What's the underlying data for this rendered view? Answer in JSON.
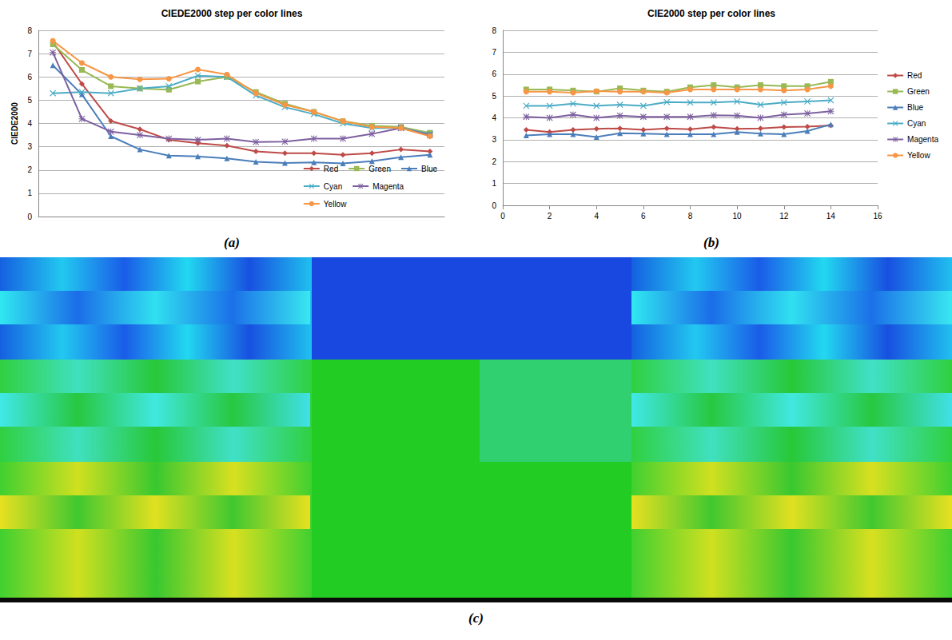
{
  "chart_data": [
    {
      "type": "line",
      "caption": "(a)",
      "title": "CIEDE2000 step per color lines",
      "y_label": "CIEDE2000",
      "categories": [
        null,
        null,
        null,
        null,
        null,
        null,
        null,
        null,
        null,
        null,
        null,
        null,
        null,
        null
      ],
      "ylim": [
        0,
        8
      ],
      "yticks": [
        0,
        1,
        2,
        3,
        4,
        5,
        6,
        7,
        8
      ],
      "grid": true,
      "legend": "lower right",
      "tick_labels": "y",
      "series": [
        {
          "name": "Red",
          "color": "#be4b48",
          "marker": "diamond",
          "values": [
            7.5,
            5.7,
            4.1,
            3.75,
            3.3,
            3.15,
            3.05,
            2.8,
            2.72,
            2.72,
            2.65,
            2.72,
            2.88,
            2.8
          ]
        },
        {
          "name": "Green",
          "color": "#98b954",
          "marker": "square",
          "values": [
            7.4,
            6.3,
            5.6,
            5.5,
            5.45,
            5.8,
            6.0,
            5.35,
            4.85,
            4.5,
            4.1,
            3.9,
            3.85,
            3.6
          ]
        },
        {
          "name": "Blue",
          "color": "#4a7ebb",
          "marker": "triangle",
          "values": [
            6.5,
            5.25,
            3.45,
            2.88,
            2.62,
            2.58,
            2.5,
            2.35,
            2.3,
            2.33,
            2.28,
            2.38,
            2.55,
            2.65
          ]
        },
        {
          "name": "Cyan",
          "color": "#4bacc6",
          "marker": "x",
          "values": [
            5.3,
            5.35,
            5.3,
            5.5,
            5.6,
            6.05,
            6.0,
            5.2,
            4.7,
            4.4,
            4.0,
            3.8,
            3.8,
            3.55
          ]
        },
        {
          "name": "Magenta",
          "color": "#7d60a0",
          "marker": "star",
          "values": [
            7.05,
            4.2,
            3.65,
            3.5,
            3.35,
            3.3,
            3.35,
            3.2,
            3.22,
            3.35,
            3.35,
            3.55,
            3.8,
            3.5
          ]
        },
        {
          "name": "Yellow",
          "color": "#f79646",
          "marker": "circle",
          "values": [
            7.55,
            6.6,
            6.0,
            5.9,
            5.92,
            6.32,
            6.1,
            5.3,
            4.8,
            4.5,
            4.1,
            3.85,
            3.8,
            3.45
          ]
        }
      ]
    },
    {
      "type": "line",
      "caption": "(b)",
      "title": "CIE2000 step per color lines",
      "x": [
        1,
        2,
        3,
        4,
        5,
        6,
        7,
        8,
        9,
        10,
        11,
        12,
        13,
        14
      ],
      "xlim": [
        0,
        16
      ],
      "xticks": [
        0,
        2,
        4,
        6,
        8,
        10,
        12,
        14,
        16
      ],
      "ylim": [
        0,
        8
      ],
      "yticks": [
        0,
        1,
        2,
        3,
        4,
        5,
        6,
        7,
        8
      ],
      "grid": true,
      "legend": "right",
      "series": [
        {
          "name": "Red",
          "color": "#be4b48",
          "marker": "diamond",
          "values": [
            3.45,
            3.35,
            3.45,
            3.5,
            3.52,
            3.45,
            3.52,
            3.48,
            3.58,
            3.5,
            3.52,
            3.58,
            3.6,
            3.65
          ]
        },
        {
          "name": "Green",
          "color": "#98b954",
          "marker": "square",
          "values": [
            5.3,
            5.3,
            5.25,
            5.2,
            5.35,
            5.25,
            5.2,
            5.4,
            5.5,
            5.4,
            5.5,
            5.45,
            5.45,
            5.65
          ]
        },
        {
          "name": "Blue",
          "color": "#4a7ebb",
          "marker": "triangle",
          "values": [
            3.2,
            3.25,
            3.25,
            3.12,
            3.3,
            3.28,
            3.25,
            3.25,
            3.25,
            3.35,
            3.28,
            3.25,
            3.4,
            3.7
          ]
        },
        {
          "name": "Cyan",
          "color": "#4bacc6",
          "marker": "x",
          "values": [
            4.55,
            4.55,
            4.65,
            4.55,
            4.6,
            4.55,
            4.72,
            4.7,
            4.7,
            4.75,
            4.6,
            4.7,
            4.75,
            4.8
          ]
        },
        {
          "name": "Magenta",
          "color": "#7d60a0",
          "marker": "star",
          "values": [
            4.05,
            4.0,
            4.15,
            4.0,
            4.1,
            4.05,
            4.05,
            4.05,
            4.12,
            4.1,
            4.0,
            4.15,
            4.2,
            4.3
          ]
        },
        {
          "name": "Yellow",
          "color": "#f79646",
          "marker": "circle",
          "values": [
            5.2,
            5.2,
            5.15,
            5.22,
            5.2,
            5.2,
            5.15,
            5.3,
            5.3,
            5.3,
            5.3,
            5.25,
            5.3,
            5.45
          ]
        }
      ]
    }
  ],
  "photo": {
    "caption": "(c)"
  }
}
